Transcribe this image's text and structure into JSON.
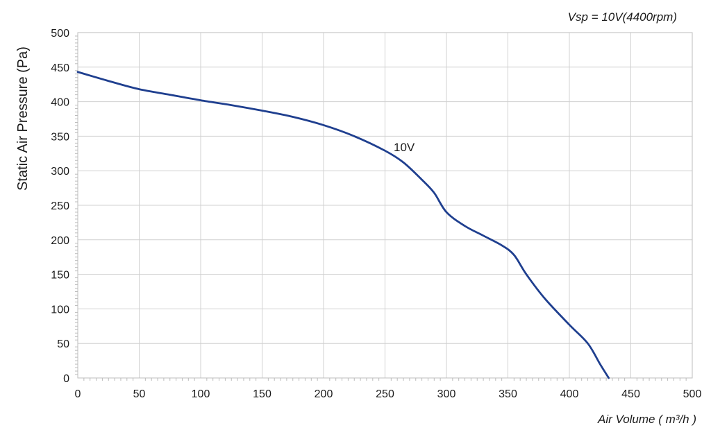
{
  "chart_data": {
    "type": "line",
    "title": "",
    "note": "Vsp = 10V(4400rpm)",
    "xlabel": "Air Volume ( m³/h )",
    "ylabel": "Static Air Pressure  (Pa)",
    "xlim": [
      0,
      500
    ],
    "ylim": [
      0,
      500
    ],
    "xticks": [
      0,
      50,
      100,
      150,
      200,
      250,
      300,
      350,
      400,
      450,
      500
    ],
    "yticks": [
      0,
      50,
      100,
      150,
      200,
      250,
      300,
      350,
      400,
      450,
      500
    ],
    "grid": true,
    "series_color": "#1f3f8f",
    "grid_color": "#d0d0d0",
    "series": [
      {
        "name": "10V",
        "x": [
          0,
          25,
          50,
          75,
          100,
          125,
          150,
          175,
          200,
          225,
          250,
          265,
          280,
          290,
          300,
          315,
          330,
          345,
          355,
          365,
          380,
          400,
          415,
          425,
          432
        ],
        "y": [
          443,
          430,
          418,
          410,
          402,
          395,
          387,
          378,
          366,
          350,
          329,
          312,
          287,
          268,
          240,
          220,
          206,
          192,
          178,
          150,
          115,
          77,
          50,
          20,
          0
        ]
      }
    ]
  }
}
